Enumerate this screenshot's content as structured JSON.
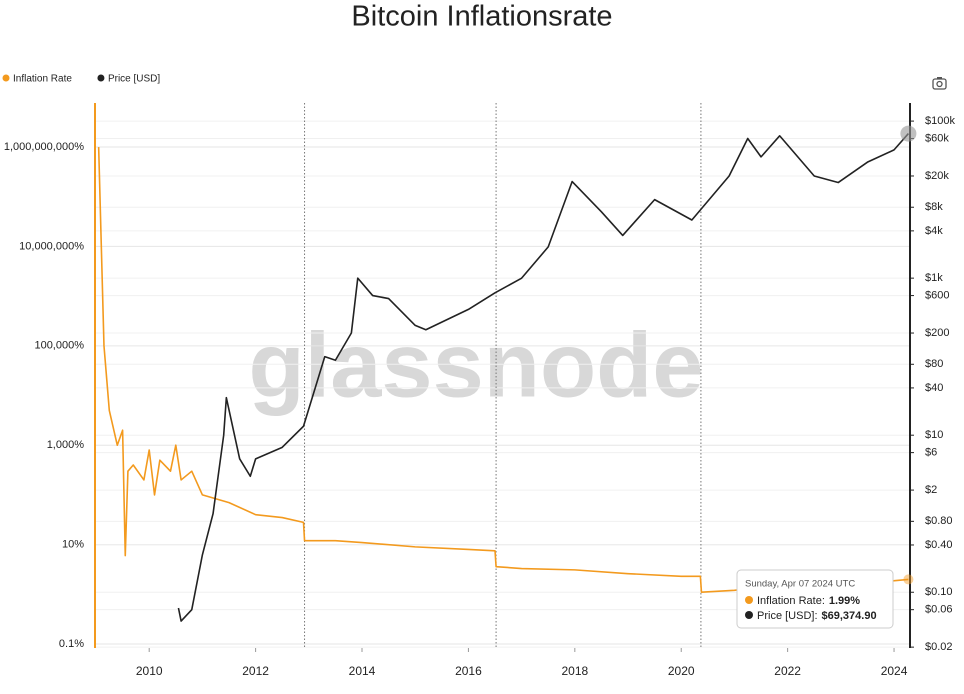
{
  "chart_data": {
    "type": "line",
    "title": "Bitcoin Inflationsrate",
    "watermark": "glassnode",
    "legend": "top-left",
    "log_scale": true,
    "grid": true,
    "xlim": [
      2009.0,
      2024.3
    ],
    "xticks": [
      2010,
      2012,
      2014,
      2016,
      2018,
      2020,
      2022,
      2024
    ],
    "ylim": [
      0.083,
      7700000000
    ],
    "yticks": [
      {
        "value": 0.1,
        "label": "0.1%"
      },
      {
        "value": 10,
        "label": "10%"
      },
      {
        "value": 1000,
        "label": "1,000%"
      },
      {
        "value": 100000,
        "label": "100,000%"
      },
      {
        "value": 10000000,
        "label": "10,000,000%"
      },
      {
        "value": 1000000000,
        "label": "1,000,000,000%"
      }
    ],
    "y2lim": [
      0.0195,
      170000
    ],
    "y2ticks": [
      {
        "value": 0.02,
        "label": "$0.02"
      },
      {
        "value": 0.06,
        "label": "$0.06"
      },
      {
        "value": 0.1,
        "label": "$0.10"
      },
      {
        "value": 0.4,
        "label": "$0.40"
      },
      {
        "value": 0.8,
        "label": "$0.80"
      },
      {
        "value": 2,
        "label": "$2"
      },
      {
        "value": 6,
        "label": "$6"
      },
      {
        "value": 10,
        "label": "$10"
      },
      {
        "value": 40,
        "label": "$40"
      },
      {
        "value": 80,
        "label": "$80"
      },
      {
        "value": 200,
        "label": "$200"
      },
      {
        "value": 600,
        "label": "$600"
      },
      {
        "value": 1000,
        "label": "$1k"
      },
      {
        "value": 4000,
        "label": "$4k"
      },
      {
        "value": 8000,
        "label": "$8k"
      },
      {
        "value": 20000,
        "label": "$20k"
      },
      {
        "value": 60000,
        "label": "$60k"
      },
      {
        "value": 100000,
        "label": "$100k"
      }
    ],
    "halvings": [
      2012.92,
      2016.52,
      2020.37
    ],
    "series": [
      {
        "name": "Inflation Rate",
        "color": "#f39a1e",
        "x": [
          2009.05,
          2009.1,
          2009.15,
          2009.25,
          2009.4,
          2009.5,
          2009.55,
          2009.6,
          2009.7,
          2009.9,
          2010.0,
          2010.1,
          2010.2,
          2010.4,
          2010.5,
          2010.6,
          2010.8,
          2011.0,
          2011.5,
          2012.0,
          2012.5,
          2012.9,
          2012.92,
          2013.5,
          2014.0,
          2015.0,
          2016.0,
          2016.5,
          2016.52,
          2017.0,
          2018.0,
          2019.0,
          2020.0,
          2020.36,
          2020.38,
          2021.0,
          2022.0,
          2023.0,
          2024.27
        ],
        "values": [
          1000000000,
          10000000,
          100000,
          5000,
          1000,
          2000,
          6,
          300,
          400,
          200,
          800,
          100,
          500,
          300,
          1000,
          200,
          300,
          100,
          70,
          40,
          35,
          28,
          12,
          12,
          11,
          9,
          8,
          7.5,
          3.6,
          3.3,
          3.1,
          2.6,
          2.3,
          2.3,
          1.1,
          1.2,
          1.6,
          1.5,
          1.99
        ]
      },
      {
        "name": "Price [USD]",
        "color": "#222222",
        "axis": "y2",
        "x": [
          2010.55,
          2010.6,
          2010.8,
          2011.0,
          2011.2,
          2011.4,
          2011.45,
          2011.7,
          2011.9,
          2012.0,
          2012.5,
          2012.9,
          2013.3,
          2013.5,
          2013.8,
          2013.92,
          2014.2,
          2014.5,
          2015.0,
          2015.2,
          2016.0,
          2016.5,
          2017.0,
          2017.5,
          2017.95,
          2018.5,
          2018.9,
          2019.5,
          2020.2,
          2020.9,
          2021.25,
          2021.5,
          2021.85,
          2022.5,
          2022.95,
          2023.5,
          2024.0,
          2024.27
        ],
        "values": [
          0.063,
          0.043,
          0.06,
          0.3,
          1,
          10,
          30,
          5,
          3,
          5,
          7,
          13,
          100,
          90,
          200,
          1000,
          600,
          550,
          250,
          220,
          400,
          650,
          1000,
          2500,
          17000,
          7000,
          3500,
          10000,
          5500,
          20000,
          60000,
          35000,
          65000,
          20000,
          16500,
          30000,
          43000,
          69374.9
        ]
      }
    ],
    "tooltip": {
      "title": "Sunday, Apr 07 2024 UTC",
      "items": [
        {
          "label": "Inflation Rate:",
          "value": "1.99%"
        },
        {
          "label": "Price [USD]:",
          "value": "$69,374.90"
        }
      ]
    }
  }
}
